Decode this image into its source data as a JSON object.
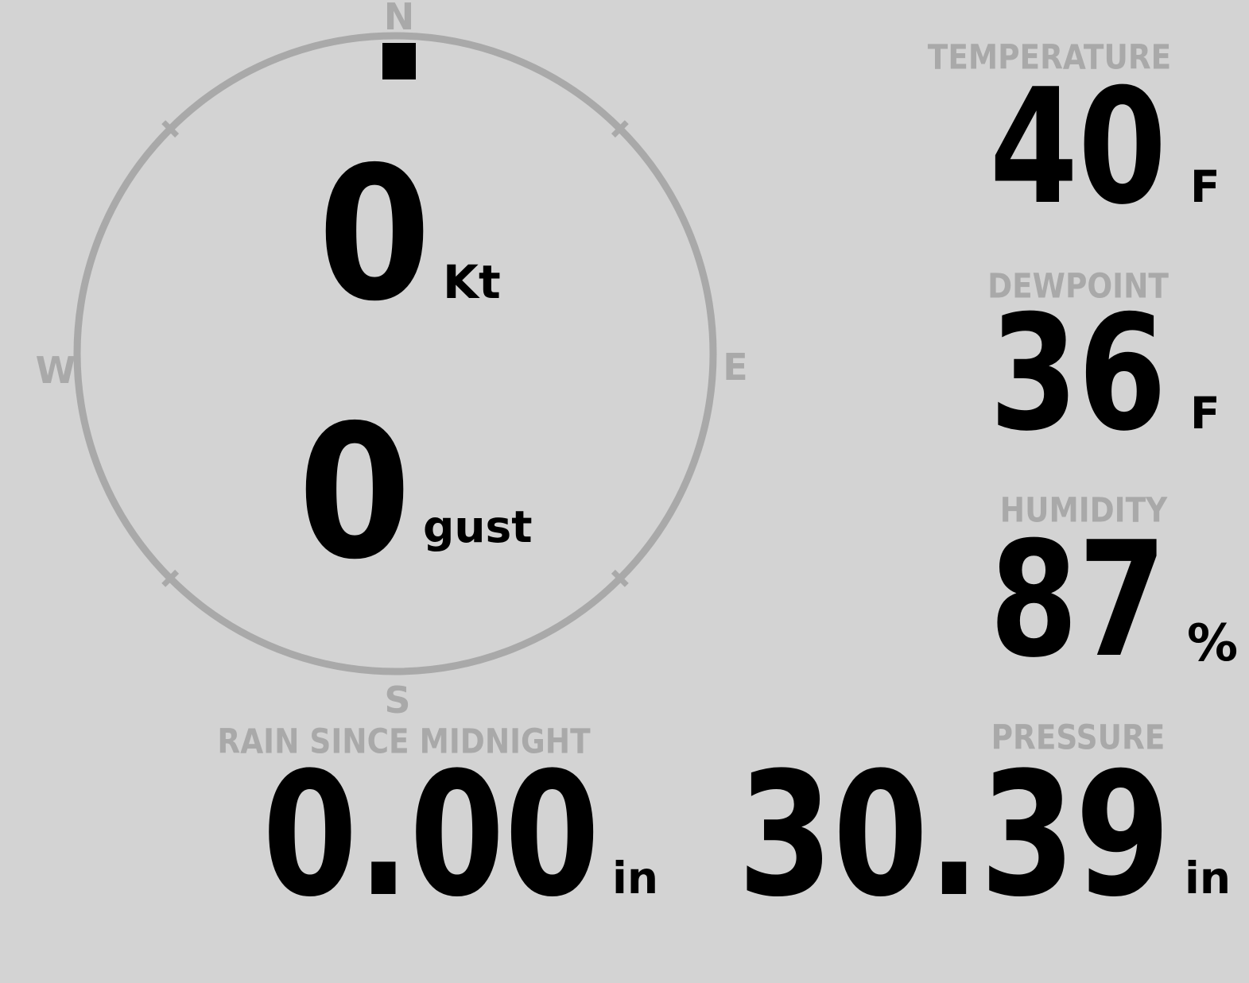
{
  "colors": {
    "background": "#d3d3d3",
    "muted": "#a9a9a9",
    "value": "#000000"
  },
  "wind_compass": {
    "cardinals": {
      "n": "N",
      "e": "E",
      "s": "S",
      "w": "W"
    },
    "direction_deg": 0,
    "speed": {
      "value": "0",
      "unit": "Kt"
    },
    "gust": {
      "value": "0",
      "unit": "gust"
    }
  },
  "metrics": {
    "temperature": {
      "label": "TEMPERATURE",
      "value": "40",
      "unit": "F"
    },
    "dewpoint": {
      "label": "DEWPOINT",
      "value": "36",
      "unit": "F"
    },
    "humidity": {
      "label": "HUMIDITY",
      "value": "87",
      "unit": "%"
    },
    "rain": {
      "label": "RAIN SINCE MIDNIGHT",
      "value": "0.00",
      "unit": "in"
    },
    "pressure": {
      "label": "PRESSURE",
      "value": "30.39",
      "unit": "in"
    }
  }
}
